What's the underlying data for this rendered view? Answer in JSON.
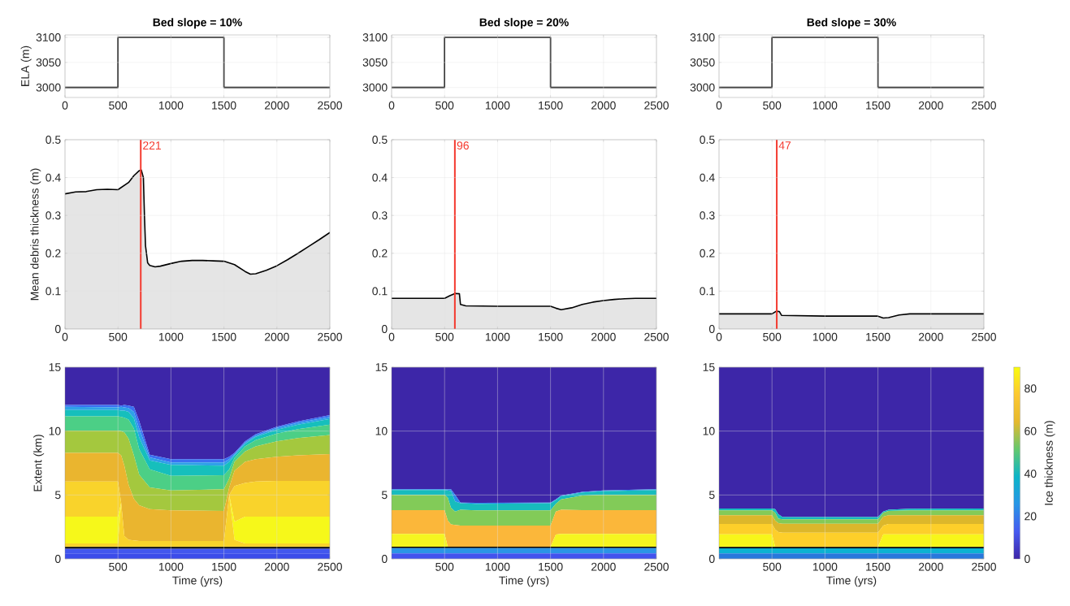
{
  "chart_data": [
    {
      "type": "step",
      "title": "Bed slope = 10%",
      "ylabel": "ELA (m)",
      "x": [
        0,
        500,
        1500,
        2500
      ],
      "xlim": [
        0,
        2500
      ],
      "ylim": [
        2980,
        3105
      ],
      "xticks": [
        0,
        500,
        1000,
        1500,
        2000,
        2500
      ],
      "yticks": [
        3000,
        3050,
        3100
      ],
      "grid": true,
      "series": [
        {
          "color": "#000000",
          "values": [
            3000,
            3100,
            3000,
            3000
          ]
        }
      ]
    },
    {
      "type": "step",
      "title": "Bed slope = 20%",
      "x": [
        0,
        500,
        1500,
        2500
      ],
      "xlim": [
        0,
        2500
      ],
      "ylim": [
        2980,
        3105
      ],
      "xticks": [
        0,
        500,
        1000,
        1500,
        2000,
        2500
      ],
      "yticks": [
        3000,
        3050,
        3100
      ],
      "grid": true,
      "series": [
        {
          "color": "#000000",
          "values": [
            3000,
            3100,
            3000,
            3000
          ]
        }
      ]
    },
    {
      "type": "step",
      "title": "Bed slope = 30%",
      "x": [
        0,
        500,
        1500,
        2500
      ],
      "xlim": [
        0,
        2500
      ],
      "ylim": [
        2980,
        3105
      ],
      "xticks": [
        0,
        500,
        1000,
        1500,
        2000,
        2500
      ],
      "yticks": [
        3000,
        3050,
        3100
      ],
      "grid": true,
      "series": [
        {
          "color": "#000000",
          "values": [
            3000,
            3100,
            3000,
            3000
          ]
        }
      ]
    },
    {
      "type": "area",
      "ylabel": "Mean debris thickness (m)",
      "x": [
        0,
        100,
        200,
        300,
        400,
        500,
        600,
        650,
        700,
        720,
        740,
        750,
        760,
        780,
        800,
        850,
        900,
        1000,
        1100,
        1200,
        1300,
        1400,
        1500,
        1600,
        1700,
        1750,
        1800,
        1900,
        2000,
        2100,
        2200,
        2300,
        2400,
        2500
      ],
      "xlim": [
        0,
        2500
      ],
      "ylim": [
        0,
        0.5
      ],
      "xticks": [
        0,
        500,
        1000,
        1500,
        2000,
        2500
      ],
      "yticks": [
        0,
        0.1,
        0.2,
        0.3,
        0.4,
        0.5
      ],
      "grid": true,
      "series": [
        {
          "type": "area",
          "color": "#e5e5e5",
          "values": [
            0.357,
            0.362,
            0.363,
            0.368,
            0.369,
            0.368,
            0.387,
            0.405,
            0.418,
            0.42,
            0.4,
            0.3,
            0.22,
            0.175,
            0.168,
            0.164,
            0.166,
            0.173,
            0.179,
            0.181,
            0.181,
            0.18,
            0.179,
            0.17,
            0.152,
            0.145,
            0.146,
            0.155,
            0.167,
            0.183,
            0.2,
            0.218,
            0.236,
            0.255
          ]
        }
      ],
      "annotations": [
        {
          "text": "221",
          "x": 715,
          "y": 0.5
        }
      ],
      "ref_lines": [
        {
          "axis": "x",
          "value": 715,
          "color": "#f4392e"
        }
      ]
    },
    {
      "type": "area",
      "x": [
        0,
        500,
        550,
        600,
        640,
        650,
        700,
        1000,
        1500,
        1550,
        1600,
        1700,
        1800,
        1900,
        2000,
        2100,
        2200,
        2300,
        2500
      ],
      "xlim": [
        0,
        2500
      ],
      "ylim": [
        0,
        0.5
      ],
      "xticks": [
        0,
        500,
        1000,
        1500,
        2000,
        2500
      ],
      "yticks": [
        0,
        0.1,
        0.2,
        0.3,
        0.4,
        0.5
      ],
      "grid": true,
      "series": [
        {
          "type": "area",
          "color": "#e5e5e5",
          "values": [
            0.081,
            0.081,
            0.088,
            0.094,
            0.093,
            0.065,
            0.061,
            0.06,
            0.06,
            0.055,
            0.051,
            0.056,
            0.065,
            0.071,
            0.075,
            0.078,
            0.08,
            0.081,
            0.081
          ]
        }
      ],
      "annotations": [
        {
          "text": "96",
          "x": 597,
          "y": 0.5
        }
      ],
      "ref_lines": [
        {
          "axis": "x",
          "value": 597,
          "color": "#f4392e"
        }
      ]
    },
    {
      "type": "area",
      "x": [
        0,
        500,
        540,
        570,
        590,
        1000,
        1500,
        1550,
        1600,
        1700,
        1800,
        2500
      ],
      "xlim": [
        0,
        2500
      ],
      "ylim": [
        0,
        0.5
      ],
      "xticks": [
        0,
        500,
        1000,
        1500,
        2000,
        2500
      ],
      "yticks": [
        0,
        0.1,
        0.2,
        0.3,
        0.4,
        0.5
      ],
      "grid": true,
      "series": [
        {
          "type": "area",
          "color": "#e5e5e5",
          "values": [
            0.04,
            0.04,
            0.047,
            0.046,
            0.036,
            0.034,
            0.034,
            0.029,
            0.03,
            0.037,
            0.04,
            0.04
          ]
        }
      ],
      "annotations": [
        {
          "text": "47",
          "x": 545,
          "y": 0.5
        }
      ],
      "ref_lines": [
        {
          "axis": "x",
          "value": 545,
          "color": "#f4392e"
        }
      ]
    },
    {
      "type": "area",
      "stacked": true,
      "xlabel": "Time (yrs)",
      "ylabel": "Extent (km)",
      "x": [
        0,
        500,
        530,
        560,
        600,
        650,
        700,
        800,
        1000,
        1500,
        1550,
        1600,
        1700,
        1800,
        2000,
        2200,
        2500
      ],
      "xlim": [
        0,
        2500
      ],
      "ylim": [
        0,
        15
      ],
      "xticks": [
        500,
        1000,
        1500,
        2000,
        2500
      ],
      "yticks": [
        0,
        5,
        10,
        15
      ],
      "grid": true,
      "series": [
        {
          "color": "#3b4cea",
          "values": [
            0.43,
            0.43,
            0.43,
            0.43,
            0.43,
            0.43,
            0.43,
            0.43,
            0.43,
            0.43,
            0.43,
            0.43,
            0.43,
            0.43,
            0.43,
            0.43,
            0.43
          ]
        },
        {
          "color": "#4257ee",
          "values": [
            0.37,
            0.37,
            0.37,
            0.37,
            0.37,
            0.37,
            0.37,
            0.37,
            0.37,
            0.37,
            0.37,
            0.37,
            0.37,
            0.37,
            0.37,
            0.37,
            0.37
          ]
        },
        {
          "color": "#000000",
          "values": [
            0.13,
            0.13,
            0.13,
            0.13,
            0.13,
            0.13,
            0.13,
            0.13,
            0.13,
            0.13,
            0.13,
            0.13,
            0.13,
            0.13,
            0.13,
            0.13,
            0.13
          ]
        },
        {
          "color": "#f9d32b",
          "values": [
            0.27,
            0.27,
            3.47,
            0.87,
            0.57,
            0.52,
            0.47,
            0.47,
            0.47,
            0.47,
            4.07,
            0.57,
            0.27,
            0.27,
            0.27,
            0.27,
            0.27
          ]
        },
        {
          "color": "#f6f81a",
          "values": [
            2.1,
            2.1,
            0,
            0,
            0,
            0,
            0,
            0,
            0,
            0,
            0,
            1.4,
            2.1,
            2.1,
            2.1,
            2.1,
            2.1
          ]
        },
        {
          "color": "#f9d32b",
          "values": [
            2.75,
            2.75,
            0,
            0,
            0,
            0,
            0,
            0,
            0,
            0,
            0,
            2.8,
            2.65,
            2.75,
            2.8,
            2.8,
            2.8
          ]
        },
        {
          "color": "#eab52f",
          "values": [
            2.25,
            2.25,
            3.7,
            5.5,
            4.3,
            3.25,
            2.8,
            2.5,
            2.4,
            2.35,
            0.6,
            1.2,
            1.65,
            1.75,
            1.9,
            2.0,
            2.1
          ]
        },
        {
          "color": "#a4c83e",
          "values": [
            1.75,
            1.75,
            1.9,
            2.6,
            3.6,
            3.4,
            2.4,
            1.7,
            1.55,
            1.7,
            0.7,
            0.7,
            0.8,
            1.0,
            1.2,
            1.35,
            1.5
          ]
        },
        {
          "color": "#4ccf86",
          "values": [
            1.1,
            1.1,
            1.1,
            1.15,
            1.5,
            2.1,
            2.0,
            1.4,
            1.15,
            1.1,
            0.7,
            0.3,
            0.4,
            0.5,
            0.6,
            0.7,
            0.8
          ]
        },
        {
          "color": "#16bfbc",
          "values": [
            0.5,
            0.5,
            0.5,
            0.55,
            0.6,
            0.8,
            0.9,
            0.7,
            0.85,
            0.75,
            0.6,
            0.2,
            0.2,
            0.25,
            0.3,
            0.35,
            0.45
          ]
        },
        {
          "color": "#2fa0e8",
          "values": [
            0.25,
            0.2,
            0.3,
            0.25,
            0.3,
            0.5,
            0.7,
            0.25,
            0.2,
            0.25,
            0.2,
            0.1,
            0.1,
            0.1,
            0.15,
            0.15,
            0.15
          ]
        },
        {
          "color": "#3a70f2",
          "values": [
            0.15,
            0.2,
            0.1,
            0.2,
            0.2,
            0.4,
            0.6,
            0.2,
            0.25,
            0.25,
            0.2,
            0.1,
            0.1,
            0.1,
            0.1,
            0.1,
            0.15
          ]
        },
        {
          "color": "#3d26a8",
          "values": [
            2.95,
            2.95,
            3.0,
            2.95,
            3.0,
            3.1,
            4.2,
            6.85,
            7.2,
            7.2,
            7.0,
            6.7,
            5.8,
            5.25,
            4.65,
            4.25,
            3.75
          ]
        }
      ]
    },
    {
      "type": "area",
      "stacked": true,
      "xlabel": "Time (yrs)",
      "x": [
        0,
        500,
        530,
        560,
        600,
        650,
        800,
        1500,
        1550,
        1600,
        1800,
        2000,
        2500
      ],
      "xlim": [
        0,
        2500
      ],
      "ylim": [
        0,
        15
      ],
      "xticks": [
        500,
        1000,
        1500,
        2000,
        2500
      ],
      "yticks": [
        0,
        5,
        10,
        15
      ],
      "grid": true,
      "series": [
        {
          "color": "#4252ee",
          "values": [
            0.43,
            0.43,
            0.43,
            0.43,
            0.43,
            0.43,
            0.43,
            0.43,
            0.43,
            0.43,
            0.43,
            0.43,
            0.43
          ]
        },
        {
          "color": "#2b94e6",
          "values": [
            0.42,
            0.42,
            0.42,
            0.42,
            0.42,
            0.42,
            0.42,
            0.42,
            0.42,
            0.42,
            0.42,
            0.42,
            0.42
          ]
        },
        {
          "color": "#000000",
          "values": [
            0.1,
            0.1,
            0.1,
            0.1,
            0.1,
            0.1,
            0.1,
            0.1,
            0.1,
            0.1,
            0.1,
            0.1,
            0.1
          ]
        },
        {
          "color": "#f5f520",
          "values": [
            1.0,
            1.0,
            0,
            0,
            0,
            0,
            0,
            0,
            0.95,
            1.0,
            1.0,
            1.0,
            1.0
          ]
        },
        {
          "color": "#fbb73a",
          "values": [
            1.87,
            1.87,
            2.05,
            1.75,
            1.7,
            1.65,
            1.65,
            1.65,
            1.8,
            1.9,
            1.87,
            1.87,
            1.87
          ]
        },
        {
          "color": "#82cb58",
          "values": [
            1.18,
            1.18,
            1.8,
            1.3,
            1.05,
            1.25,
            1.2,
            1.2,
            0.6,
            0.8,
            1.13,
            1.18,
            1.18
          ]
        },
        {
          "color": "#17bcbd",
          "values": [
            0.38,
            0.38,
            0.55,
            1.3,
            0.8,
            0.5,
            0.5,
            0.55,
            0.3,
            0.25,
            0.25,
            0.3,
            0.38
          ]
        },
        {
          "color": "#2a8cee",
          "values": [
            0.07,
            0.07,
            0.08,
            0.15,
            0.5,
            0.05,
            0.08,
            0.05,
            0.05,
            0.05,
            0.05,
            0.05,
            0.07
          ]
        },
        {
          "color": "#3d26a8",
          "values": [
            9.55,
            9.55,
            9.57,
            9.55,
            10.0,
            10.6,
            10.62,
            10.6,
            10.35,
            10.05,
            9.75,
            9.65,
            9.55
          ]
        }
      ]
    },
    {
      "type": "area",
      "stacked": true,
      "xlabel": "Time (yrs)",
      "clabel": "Ice thickness (m)",
      "clim": [
        0,
        90
      ],
      "cticks": [
        0,
        20,
        40,
        60,
        80
      ],
      "x": [
        0,
        500,
        530,
        560,
        600,
        1500,
        1550,
        1600,
        1800,
        2500
      ],
      "xlim": [
        0,
        2500
      ],
      "ylim": [
        0,
        15
      ],
      "xticks": [
        500,
        1000,
        1500,
        2000,
        2500
      ],
      "yticks": [
        0,
        5,
        10,
        15
      ],
      "grid": true,
      "series": [
        {
          "color": "#2878dc",
          "values": [
            0.43,
            0.43,
            0.43,
            0.43,
            0.43,
            0.43,
            0.43,
            0.43,
            0.43,
            0.43
          ]
        },
        {
          "color": "#0cb2d2",
          "values": [
            0.4,
            0.4,
            0.4,
            0.4,
            0.4,
            0.4,
            0.4,
            0.4,
            0.4,
            0.4
          ]
        },
        {
          "color": "#000000",
          "values": [
            0.11,
            0.11,
            0.11,
            0.11,
            0.11,
            0.11,
            0.11,
            0.11,
            0.11,
            0.11
          ]
        },
        {
          "color": "#f7f61a",
          "values": [
            0.98,
            0.98,
            0,
            0,
            0,
            0,
            0.98,
            0.98,
            0.98,
            0.98
          ]
        },
        {
          "color": "#fdcf2a",
          "values": [
            0.81,
            0.81,
            1.36,
            1.16,
            1.11,
            1.11,
            0.68,
            0.81,
            0.81,
            0.81
          ]
        },
        {
          "color": "#dcb72b",
          "values": [
            0.68,
            0.68,
            0.7,
            0.7,
            0.7,
            0.7,
            0.7,
            0.68,
            0.68,
            0.68
          ]
        },
        {
          "color": "#84ca57",
          "values": [
            0.38,
            0.38,
            0.6,
            0.35,
            0.35,
            0.35,
            0.3,
            0.34,
            0.38,
            0.38
          ]
        },
        {
          "color": "#17bcbd",
          "values": [
            0.15,
            0.15,
            0.3,
            0.35,
            0.18,
            0.18,
            0.1,
            0.1,
            0.13,
            0.15
          ]
        },
        {
          "color": "#3d26a8",
          "values": [
            11.06,
            11.06,
            11.1,
            11.5,
            11.72,
            11.72,
            11.3,
            11.15,
            11.08,
            11.06
          ]
        }
      ]
    }
  ]
}
